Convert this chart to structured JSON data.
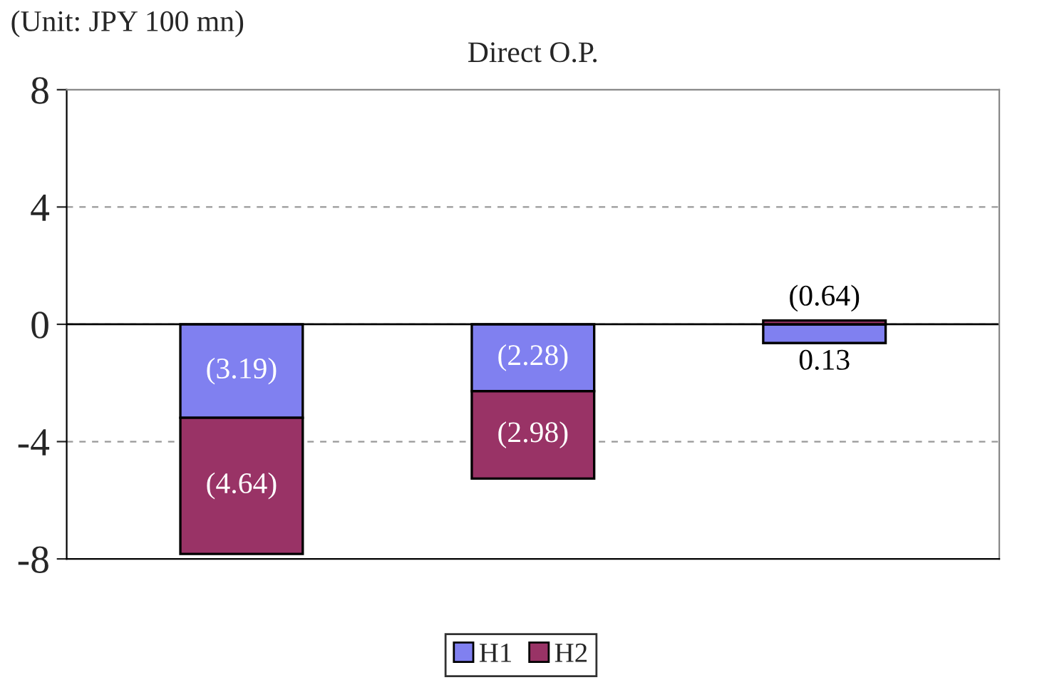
{
  "chart_data": {
    "type": "bar",
    "title": "Direct O.P.",
    "stacked": true,
    "annotations": [
      "(Unit: JPY 100 mn)"
    ],
    "categories": [
      null,
      null,
      null
    ],
    "series": [
      {
        "name": "H1",
        "color": "#8080f0",
        "values": [
          -3.19,
          -2.28,
          -0.64
        ],
        "value_labels": [
          "(3.19)",
          "(2.28)",
          "(0.64)"
        ]
      },
      {
        "name": "H2",
        "color": "#993366",
        "values": [
          -4.64,
          -2.98,
          0.13
        ],
        "value_labels": [
          "(4.64)",
          "(2.98)",
          "0.13"
        ]
      }
    ],
    "ylim": [
      -8,
      8
    ],
    "yticks": [
      -8,
      -4,
      0,
      4,
      8
    ],
    "grid": "y",
    "legend": "bottom"
  }
}
